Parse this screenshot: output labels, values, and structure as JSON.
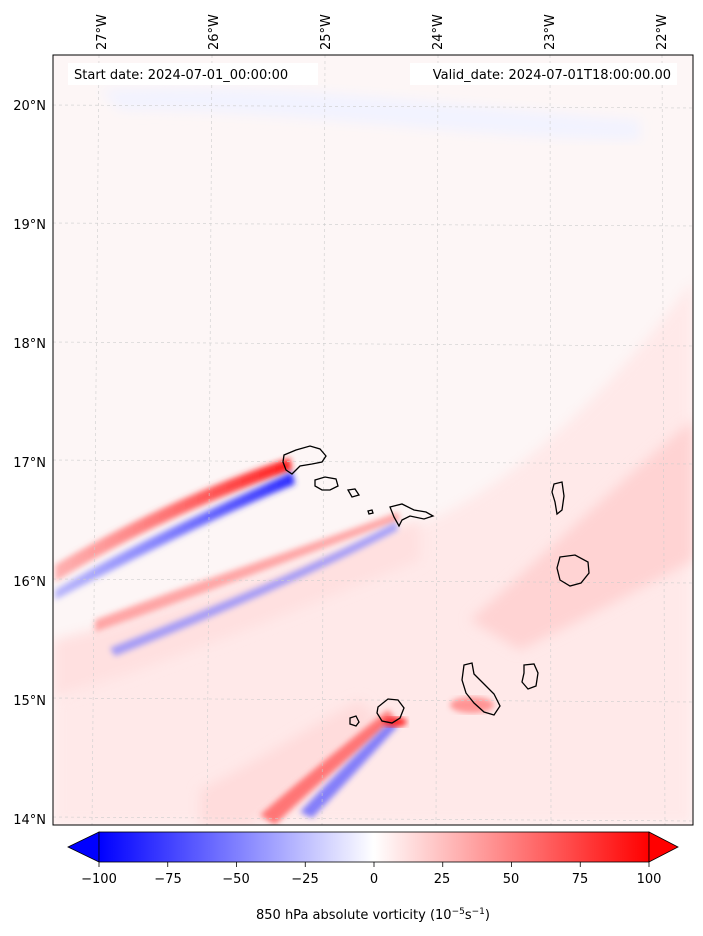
{
  "header": {
    "start_label": "Start date: 2024-07-01_00:00:00",
    "valid_label": "Valid_date: 2024-07-01T18:00:00.00"
  },
  "map": {
    "lon_ticks": [
      "27°W",
      "26°W",
      "25°W",
      "24°W",
      "23°W",
      "22°W"
    ],
    "lat_ticks": [
      "20°N",
      "19°N",
      "18°N",
      "17°N",
      "16°N",
      "15°N",
      "14°N"
    ],
    "gridlines": true
  },
  "colorbar": {
    "ticks": [
      "−100",
      "−75",
      "−50",
      "−25",
      "0",
      "25",
      "50",
      "75",
      "100"
    ],
    "min": -100,
    "max": 100,
    "label_main": "850 hPa absolute vorticity (10",
    "label_exp1": "−5",
    "label_mid": "s",
    "label_exp2": "−1",
    "label_end": ")",
    "colors": {
      "negative": "#0000ff",
      "zero": "#ffffff",
      "positive": "#ff0000"
    }
  },
  "colors": {
    "coastline": "#000000",
    "grid": "#cccccc",
    "background": "#fdf6f6"
  }
}
